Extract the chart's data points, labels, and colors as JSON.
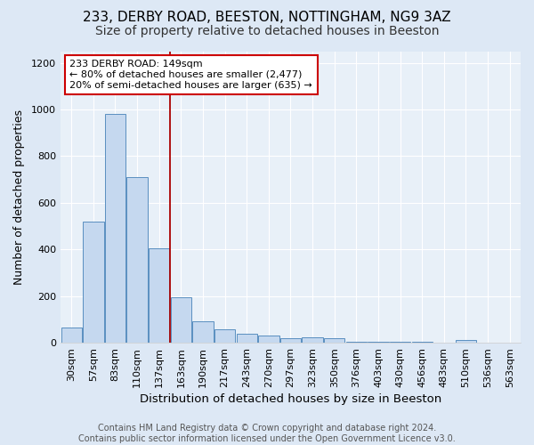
{
  "title1": "233, DERBY ROAD, BEESTON, NOTTINGHAM, NG9 3AZ",
  "title2": "Size of property relative to detached houses in Beeston",
  "xlabel": "Distribution of detached houses by size in Beeston",
  "ylabel": "Number of detached properties",
  "categories": [
    "30sqm",
    "57sqm",
    "83sqm",
    "110sqm",
    "137sqm",
    "163sqm",
    "190sqm",
    "217sqm",
    "243sqm",
    "270sqm",
    "297sqm",
    "323sqm",
    "350sqm",
    "376sqm",
    "403sqm",
    "430sqm",
    "456sqm",
    "483sqm",
    "510sqm",
    "536sqm",
    "563sqm"
  ],
  "values": [
    65,
    520,
    980,
    710,
    405,
    195,
    90,
    58,
    38,
    32,
    18,
    22,
    18,
    5,
    5,
    5,
    5,
    2,
    10,
    2,
    2
  ],
  "bar_color": "#c5d8ef",
  "bar_edge_color": "#5a8fc0",
  "vline_index": 4.5,
  "vline_color": "#aa0000",
  "annotation_text": "233 DERBY ROAD: 149sqm\n← 80% of detached houses are smaller (2,477)\n20% of semi-detached houses are larger (635) →",
  "annotation_box_facecolor": "#ffffff",
  "annotation_box_edgecolor": "#cc0000",
  "ylim": [
    0,
    1250
  ],
  "yticks": [
    0,
    200,
    400,
    600,
    800,
    1000,
    1200
  ],
  "fig_bg_color": "#dde8f5",
  "plot_bg_color": "#e8f0f8",
  "grid_color": "#ffffff",
  "footer_text": "Contains HM Land Registry data © Crown copyright and database right 2024.\nContains public sector information licensed under the Open Government Licence v3.0.",
  "title1_fontsize": 11,
  "title2_fontsize": 10,
  "xlabel_fontsize": 9.5,
  "ylabel_fontsize": 9,
  "tick_fontsize": 8,
  "annotation_fontsize": 8,
  "footer_fontsize": 7
}
